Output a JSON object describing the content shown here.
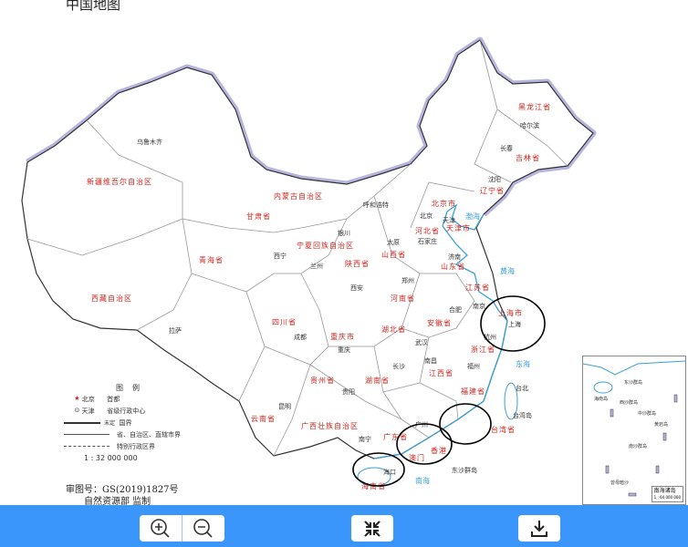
{
  "title": "中国地图",
  "provinces": [
    "黑龙江省",
    "吉林省",
    "辽宁省",
    "内蒙古自治区",
    "新疆维吾尔自治区",
    "西藏自治区",
    "青海省",
    "甘肃省",
    "宁夏回族自治区",
    "陕西省",
    "山西省",
    "河北省",
    "北京市",
    "天津市",
    "山东省",
    "河南省",
    "江苏省",
    "安徽省",
    "上海市",
    "湖北省",
    "四川省",
    "重庆市",
    "浙江省",
    "湖南省",
    "江西省",
    "福建省",
    "贵州省",
    "云南省",
    "广西壮族自治区",
    "广东省",
    "香港",
    "澳门",
    "海南省",
    "台湾省"
  ],
  "cities": [
    "哈尔滨",
    "长春",
    "沈阳",
    "乌鲁木齐",
    "呼和浩特",
    "北京",
    "天津",
    "石家庄",
    "太原",
    "济南",
    "银川",
    "兰州",
    "西宁",
    "西安",
    "郑州",
    "合肥",
    "南京",
    "上海",
    "杭州",
    "武汉",
    "成都",
    "重庆",
    "拉萨",
    "长沙",
    "南昌",
    "福州",
    "贵阳",
    "昆明",
    "南宁",
    "广州",
    "海口",
    "台北",
    "台湾岛",
    "东沙群岛"
  ],
  "seas": [
    "渤海",
    "黄海",
    "东海",
    "南海"
  ],
  "legend": {
    "heading": "图例",
    "capital_name": "北京",
    "capital_desc": "首都",
    "provincial_name": "天津",
    "provincial_desc": "省级行政中心",
    "border_label": "未定",
    "border_desc": "国界",
    "province_border_desc": "省、自治区、直辖市界",
    "sar_border_desc": "特别行政区界",
    "scale": "1 : 32 000 000"
  },
  "review_number": "审图号：GS(2019)1827号",
  "organization": "自然资源部 监制",
  "inset": {
    "caption": "南海诸岛",
    "scale": "1 : 64 000 000",
    "labels": [
      "西沙群岛",
      "东沙群岛",
      "中沙群岛",
      "南沙群岛",
      "海南岛",
      "黄岩岛",
      "曾母暗沙"
    ]
  },
  "colors": {
    "toolbar": "#3a96fb",
    "province_label": "#d0241c",
    "coast": "#3aa0d8",
    "border_halo": "#b7b4e0",
    "annotation": "#000000"
  },
  "toolbar": {
    "zoom_in": "zoom-in-icon",
    "zoom_out": "zoom-out-icon",
    "fit": "compress-icon",
    "download": "download-icon"
  }
}
